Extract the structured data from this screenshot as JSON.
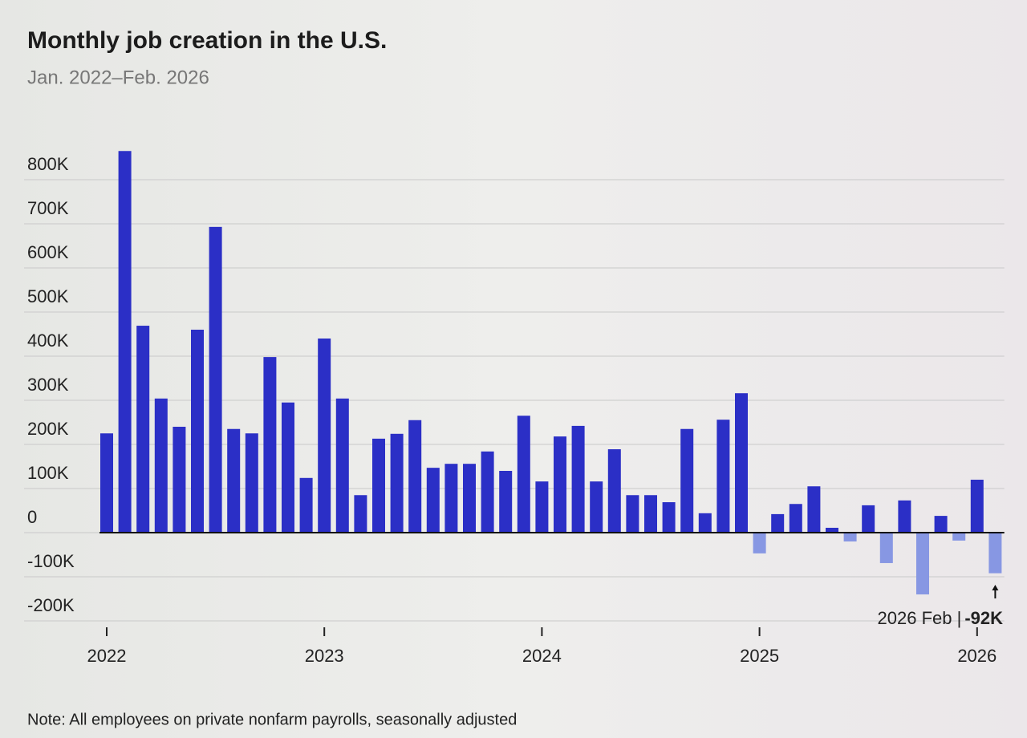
{
  "chart_data": {
    "type": "bar",
    "title": "Monthly job creation in the U.S.",
    "subtitle": "Jan. 2022–Feb. 2026",
    "note": "Note: All employees on private nonfarm payrolls, seasonally adjusted",
    "categories": [
      "2022",
      null,
      null,
      null,
      null,
      null,
      null,
      null,
      null,
      null,
      null,
      null,
      "2023",
      null,
      null,
      null,
      null,
      null,
      null,
      null,
      null,
      null,
      null,
      null,
      "2024",
      null,
      null,
      null,
      null,
      null,
      null,
      null,
      null,
      null,
      null,
      null,
      "2025",
      null,
      null,
      null,
      null,
      null,
      null,
      null,
      null,
      null,
      null,
      null,
      "2026",
      null
    ],
    "values": [
      225000,
      865000,
      469000,
      304000,
      240000,
      460000,
      693000,
      235000,
      225000,
      398000,
      295000,
      124000,
      440000,
      304000,
      85000,
      213000,
      224000,
      255000,
      147000,
      156000,
      156000,
      184000,
      140000,
      265000,
      116000,
      218000,
      242000,
      116000,
      189000,
      85000,
      85000,
      69000,
      235000,
      44000,
      256000,
      316000,
      -47000,
      42000,
      65000,
      105000,
      11000,
      -20000,
      62000,
      -69000,
      73000,
      -140000,
      38000,
      -18000,
      120000,
      -92000
    ],
    "value_labels": [
      null,
      null,
      null,
      null,
      null,
      null,
      null,
      null,
      null,
      null,
      null,
      null,
      null,
      null,
      null,
      null,
      null,
      null,
      null,
      null,
      null,
      null,
      null,
      null,
      null,
      null,
      null,
      null,
      null,
      null,
      null,
      null,
      null,
      null,
      null,
      null,
      null,
      null,
      null,
      null,
      null,
      null,
      null,
      null,
      null,
      null,
      null,
      null,
      null,
      "-92K"
    ],
    "annotation": "2026 Feb |",
    "color": "#2b2fc6",
    "negative_color": "#8797e3",
    "ylim": [
      -200000,
      880000
    ],
    "yticks": [
      {
        "value": -200000,
        "label": "-200K"
      },
      {
        "value": -100000,
        "label": "-100K"
      },
      0,
      {
        "value": 100000,
        "label": "100K"
      },
      {
        "value": 200000,
        "label": "200K"
      },
      {
        "value": 300000,
        "label": "300K"
      },
      {
        "value": 400000,
        "label": "400K"
      },
      {
        "value": 500000,
        "label": "500K"
      },
      {
        "value": 600000,
        "label": "600K"
      },
      {
        "value": 700000,
        "label": "700K"
      },
      {
        "value": 800000,
        "label": "800K"
      }
    ],
    "grid": true
  }
}
